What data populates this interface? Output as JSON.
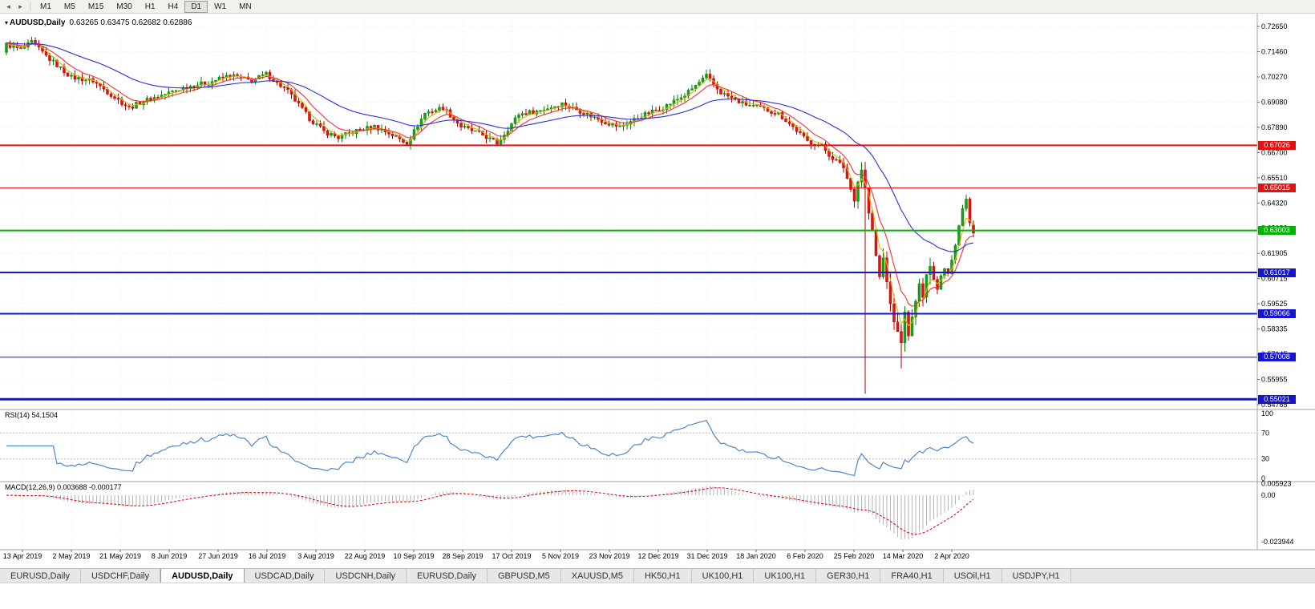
{
  "colors": {
    "bull": "#17a317",
    "bull_stroke": "#0d7d0d",
    "bear": "#e11515",
    "bear_stroke": "#b00000",
    "ma_fast": "#d9b800",
    "ma_mid": "#f03232",
    "ma_slow": "#2d2dd8",
    "line_red": "#e31212",
    "line_green": "#00b300",
    "line_blue": "#1515cf",
    "rsi_line": "#4e86c8",
    "rsi_level": "#b8b8b8",
    "macd_hist": "#b4b4b4",
    "macd_signal": "#dd0000",
    "grid": "#ededed",
    "axis_border": "#a0a0a0"
  },
  "toolbar": {
    "scroll_left_icon": "◂",
    "scroll_right_icon": "▸",
    "timeframes": [
      "M1",
      "M5",
      "M15",
      "M30",
      "H1",
      "H4",
      "D1",
      "W1",
      "MN"
    ],
    "active_timeframe": "D1"
  },
  "chart": {
    "dropdown_icon": "▾",
    "title_symbol": "AUDUSD,Daily",
    "title_values": "0.63265 0.63475 0.62682 0.62886",
    "price_axis": [
      "0.72650",
      "0.71460",
      "0.70270",
      "0.69080",
      "0.67890",
      "0.66700",
      "0.65510",
      "0.64320",
      "0.63130",
      "0.61905",
      "0.60715",
      "0.59525",
      "0.58335",
      "0.57145",
      "0.55955",
      "0.54765"
    ],
    "date_axis": [
      "13 Apr 2019",
      "2 May 2019",
      "21 May 2019",
      "8 Jun 2019",
      "27 Jun 2019",
      "16 Jul 2019",
      "3 Aug 2019",
      "22 Aug 2019",
      "10 Sep 2019",
      "28 Sep 2019",
      "17 Oct 2019",
      "5 Nov 2019",
      "23 Nov 2019",
      "12 Dec 2019",
      "31 Dec 2019",
      "18 Jan 2020",
      "6 Feb 2020",
      "25 Feb 2020",
      "14 Mar 2020",
      "2 Apr 2020"
    ],
    "hlines": [
      {
        "label": "0.67026",
        "price": 0.67026,
        "color": "#e31212",
        "width": 2,
        "interactable": true,
        "kind": "resistance"
      },
      {
        "label": "0.65015",
        "price": 0.65015,
        "color": "#e31212",
        "width": 1,
        "interactable": true,
        "kind": "resistance"
      },
      {
        "label": "0.63003",
        "price": 0.63003,
        "color": "#00b300",
        "width": 2,
        "interactable": false,
        "kind": "bid"
      },
      {
        "label": "0.61017",
        "price": 0.61017,
        "color": "#1515cf",
        "width": 2,
        "interactable": true,
        "kind": "support"
      },
      {
        "label": "0.59066",
        "price": 0.59066,
        "color": "#1515cf",
        "width": 2,
        "interactable": true,
        "kind": "support"
      },
      {
        "label": "0.57008",
        "price": 0.57008,
        "color": "#1515cf",
        "width": 1,
        "interactable": true,
        "kind": "support"
      },
      {
        "label": "0.55021",
        "price": 0.55021,
        "color": "#1515cf",
        "width": 3,
        "interactable": true,
        "kind": "support"
      }
    ]
  },
  "rsi": {
    "label": "RSI(14) 54.1504",
    "axis": [
      "100",
      "70",
      "30",
      "0"
    ],
    "levels": [
      70,
      30
    ]
  },
  "macd": {
    "label": "MACD(12,26,9) 0.003688 -0.000177",
    "axis": [
      {
        "label": "0.005923",
        "value": 0.005923
      },
      {
        "label": "0.00",
        "value": 0
      },
      {
        "label": "-0.023944",
        "value": -0.023944
      }
    ]
  },
  "tabs": {
    "items": [
      "EURUSD,Daily",
      "USDCHF,Daily",
      "AUDUSD,Daily",
      "USDCAD,Daily",
      "USDCNH,Daily",
      "EURUSD,Daily",
      "GBPUSD,M5",
      "XAUUSD,M5",
      "HK50,H1",
      "UK100,H1",
      "UK100,H1",
      "GER30,H1",
      "FRA40,H1",
      "USOil,H1",
      "USDJPY,H1"
    ],
    "active_index": 2
  },
  "chart_data": {
    "type": "candlestick",
    "symbol": "AUDUSD",
    "timeframe": "Daily",
    "last_ohlc": {
      "open": 0.63265,
      "high": 0.63475,
      "low": 0.62682,
      "close": 0.62886
    },
    "bid": 0.63003,
    "ylim": [
      0.54765,
      0.7265
    ],
    "price_step": 0.0119,
    "num_candles": 269,
    "close_waypoints": [
      [
        0,
        0.718
      ],
      [
        4,
        0.7155
      ],
      [
        7,
        0.719
      ],
      [
        12,
        0.711
      ],
      [
        18,
        0.7025
      ],
      [
        24,
        0.7008
      ],
      [
        30,
        0.693
      ],
      [
        34,
        0.688
      ],
      [
        38,
        0.6912
      ],
      [
        44,
        0.6945
      ],
      [
        50,
        0.698
      ],
      [
        56,
        0.7
      ],
      [
        62,
        0.7035
      ],
      [
        68,
        0.7008
      ],
      [
        72,
        0.704
      ],
      [
        78,
        0.6958
      ],
      [
        84,
        0.683
      ],
      [
        88,
        0.6768
      ],
      [
        92,
        0.674
      ],
      [
        97,
        0.6772
      ],
      [
        102,
        0.6792
      ],
      [
        107,
        0.6752
      ],
      [
        111,
        0.6712
      ],
      [
        116,
        0.6855
      ],
      [
        121,
        0.6882
      ],
      [
        126,
        0.6792
      ],
      [
        132,
        0.6752
      ],
      [
        136,
        0.6712
      ],
      [
        142,
        0.685
      ],
      [
        148,
        0.6868
      ],
      [
        154,
        0.69
      ],
      [
        160,
        0.6858
      ],
      [
        166,
        0.6812
      ],
      [
        170,
        0.679
      ],
      [
        176,
        0.6842
      ],
      [
        182,
        0.6882
      ],
      [
        188,
        0.694
      ],
      [
        194,
        0.703
      ],
      [
        198,
        0.6952
      ],
      [
        204,
        0.69
      ],
      [
        209,
        0.688
      ],
      [
        214,
        0.6852
      ],
      [
        218,
        0.679
      ],
      [
        222,
        0.6722
      ],
      [
        226,
        0.67
      ],
      [
        228,
        0.6658
      ],
      [
        232,
        0.66
      ],
      [
        235,
        0.6442
      ],
      [
        236,
        0.653
      ],
      [
        237,
        0.6588
      ],
      [
        238,
        0.65
      ],
      [
        239,
        0.6382
      ],
      [
        240,
        0.63
      ],
      [
        241,
        0.618
      ],
      [
        242,
        0.608
      ],
      [
        243,
        0.617
      ],
      [
        244,
        0.606
      ],
      [
        245,
        0.595
      ],
      [
        246,
        0.587
      ],
      [
        247,
        0.582
      ],
      [
        248,
        0.5772
      ],
      [
        249,
        0.5912
      ],
      [
        250,
        0.58
      ],
      [
        251,
        0.5892
      ],
      [
        252,
        0.5962
      ],
      [
        253,
        0.6052
      ],
      [
        254,
        0.5988
      ],
      [
        255,
        0.6092
      ],
      [
        256,
        0.613
      ],
      [
        257,
        0.6072
      ],
      [
        258,
        0.6022
      ],
      [
        259,
        0.6088
      ],
      [
        260,
        0.6122
      ],
      [
        261,
        0.6098
      ],
      [
        262,
        0.6162
      ],
      [
        263,
        0.623
      ],
      [
        264,
        0.6322
      ],
      [
        265,
        0.6402
      ],
      [
        266,
        0.6448
      ],
      [
        267,
        0.634
      ],
      [
        268,
        0.62886
      ]
    ],
    "spikes": [
      {
        "index": 238,
        "low": 0.5528
      },
      {
        "index": 248,
        "low": 0.5648
      }
    ],
    "noise": 0.0022,
    "wick": 0.0024,
    "crash_start_index": 235,
    "crash_wick_mult": 2.0,
    "crash_noise_mult": 0.35,
    "moving_averages": [
      {
        "period": 4,
        "color_key": "ma_fast"
      },
      {
        "period": 9,
        "color_key": "ma_mid"
      },
      {
        "period": 34,
        "color_key": "ma_slow"
      }
    ],
    "indicators": {
      "rsi": {
        "period": 14,
        "current": 54.1504
      },
      "macd": {
        "fast": 12,
        "slow": 26,
        "signal": 9,
        "current": 0.003688,
        "signal_current": -0.000177
      }
    },
    "support_resistance": [
      0.67026,
      0.65015,
      0.61017,
      0.59066,
      0.57008,
      0.55021
    ]
  }
}
